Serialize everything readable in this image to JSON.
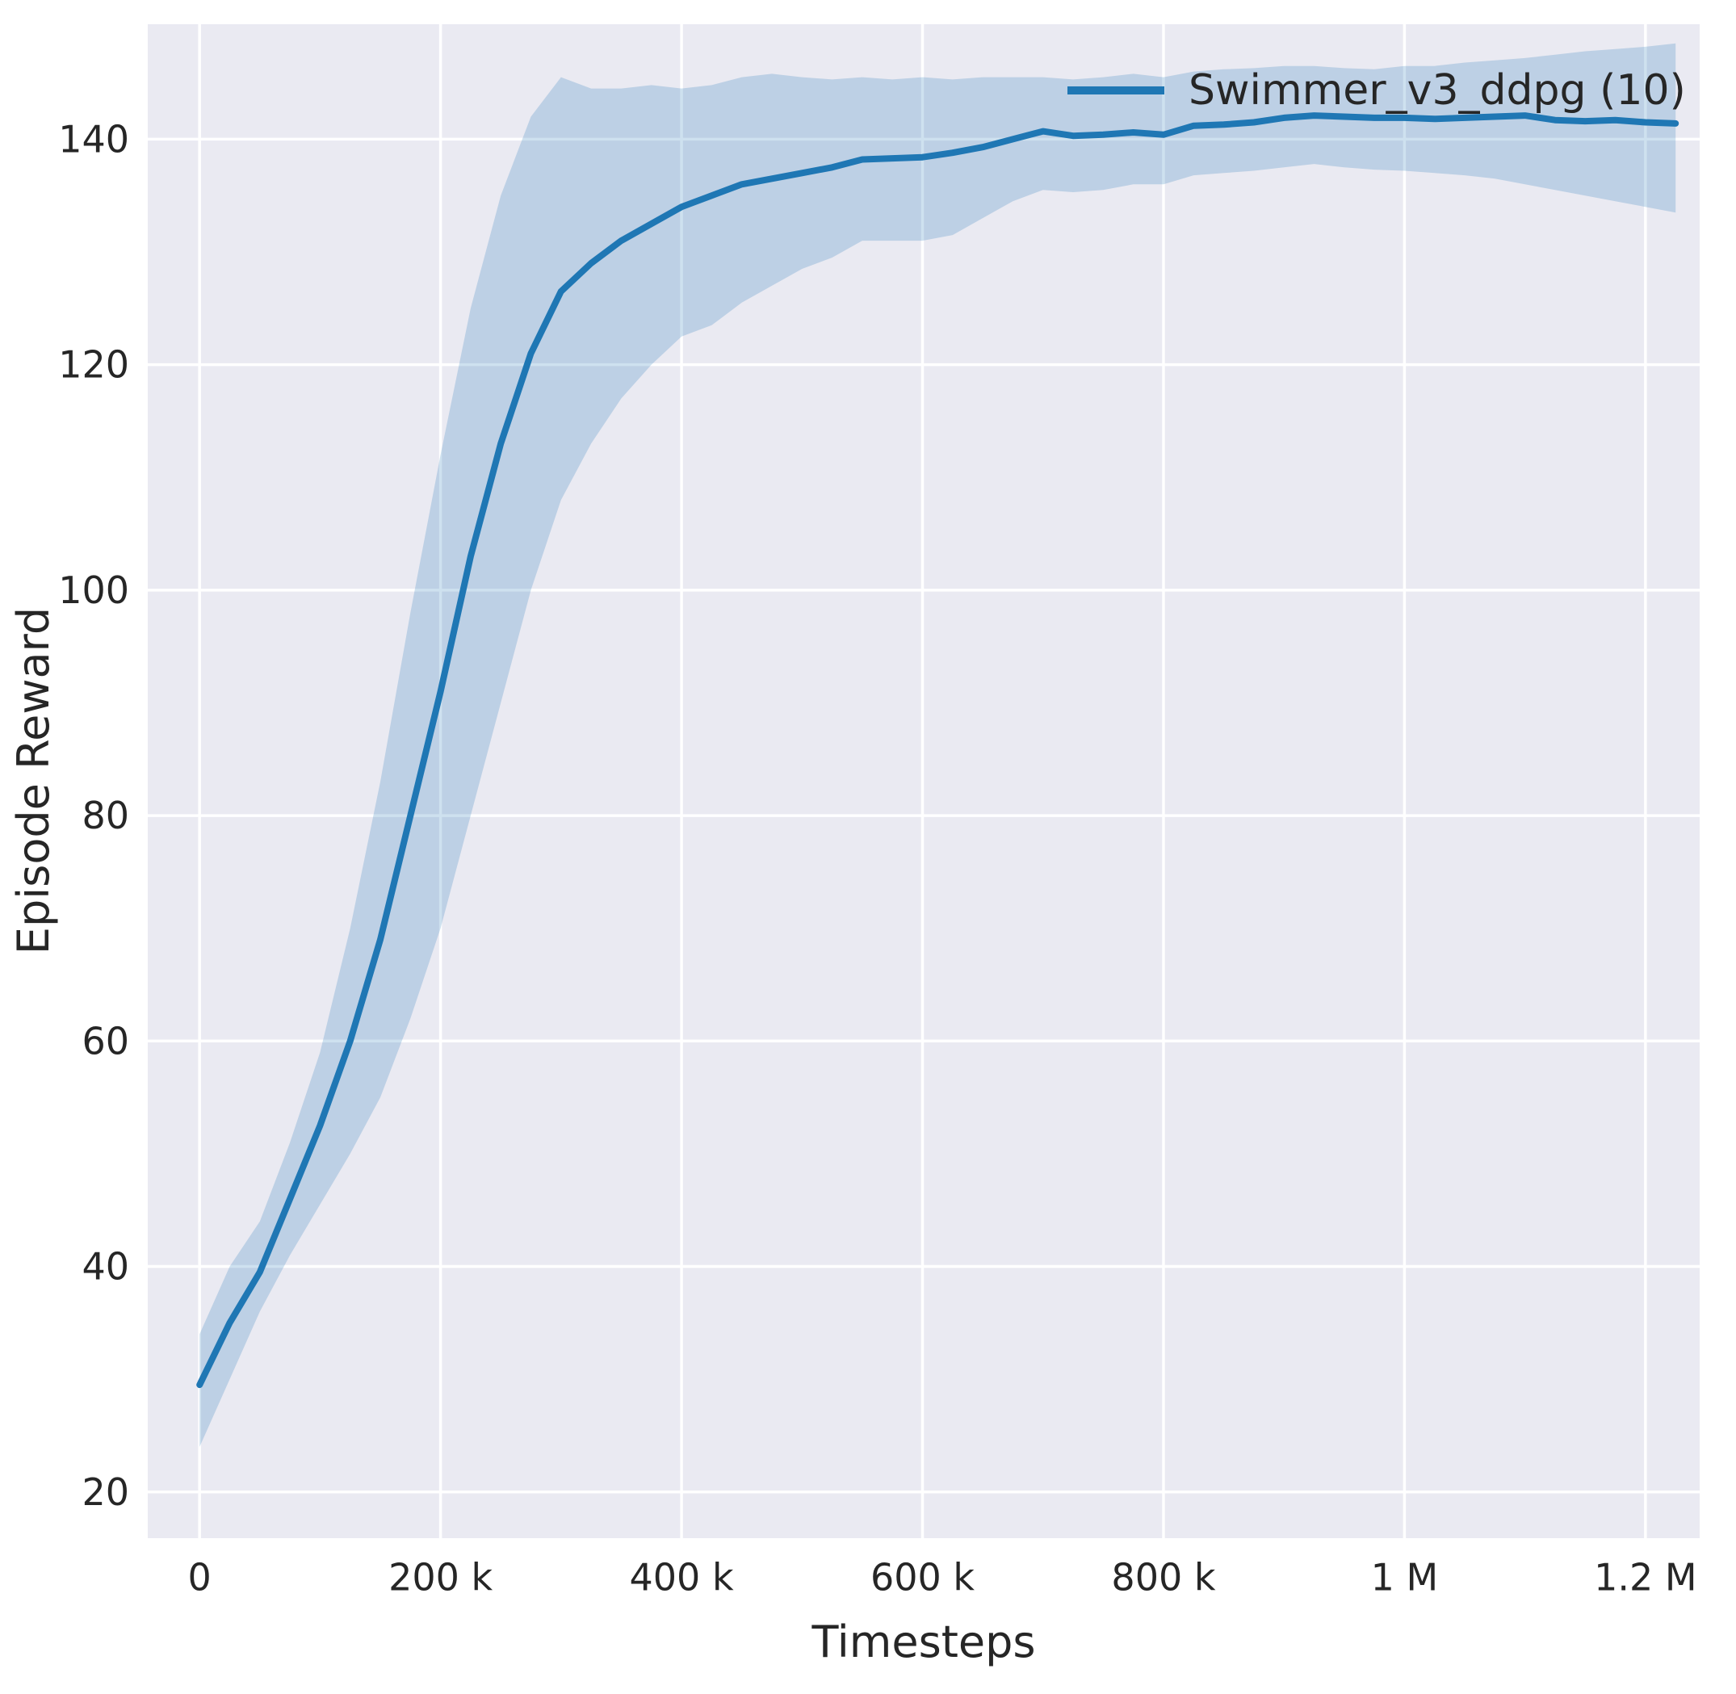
{
  "chart_data": {
    "type": "line",
    "title": "",
    "xlabel": "Timesteps",
    "ylabel": "Episode Reward",
    "legend_label": "Swimmer_v3_ddpg (10)",
    "legend_position": "upper right",
    "grid": true,
    "background": "#eaeaf2",
    "grid_color": "#ffffff",
    "line_color": "#1f77b4",
    "band_opacity": 0.22,
    "text_color": "#262626",
    "xlim": [
      -43000,
      1245000
    ],
    "ylim": [
      15.9,
      150.2
    ],
    "xticks": {
      "values": [
        0,
        200000,
        400000,
        600000,
        800000,
        1000000,
        1200000
      ],
      "labels": [
        "0",
        "200 k",
        "400 k",
        "600 k",
        "800 k",
        "1 M",
        "1.2 M"
      ]
    },
    "yticks": {
      "values": [
        20,
        40,
        60,
        80,
        100,
        120,
        140
      ],
      "labels": [
        "20",
        "40",
        "60",
        "80",
        "100",
        "120",
        "140"
      ]
    },
    "x": [
      0,
      25000,
      50000,
      75000,
      100000,
      125000,
      150000,
      175000,
      200000,
      225000,
      250000,
      275000,
      300000,
      325000,
      350000,
      375000,
      400000,
      425000,
      450000,
      475000,
      500000,
      525000,
      550000,
      575000,
      600000,
      625000,
      650000,
      675000,
      700000,
      725000,
      750000,
      775000,
      800000,
      825000,
      850000,
      875000,
      900000,
      925000,
      950000,
      975000,
      1000000,
      1025000,
      1050000,
      1075000,
      1100000,
      1125000,
      1150000,
      1175000,
      1200000,
      1225000
    ],
    "series": [
      {
        "name": "Swimmer_v3_ddpg (10)",
        "mean": [
          29.5,
          35,
          39.5,
          46,
          52.5,
          60,
          69,
          80,
          91,
          103,
          113,
          121,
          126.5,
          129,
          131,
          132.5,
          134,
          135,
          136,
          136.5,
          137,
          137.5,
          138.2,
          138.3,
          138.4,
          138.8,
          139.3,
          140,
          140.7,
          140.3,
          140.4,
          140.6,
          140.4,
          141.2,
          141.3,
          141.5,
          141.9,
          142.1,
          142,
          141.9,
          141.9,
          141.8,
          141.9,
          142,
          142.1,
          141.7,
          141.6,
          141.7,
          141.5,
          141.4
        ],
        "lower": [
          24,
          30,
          36,
          41,
          45.5,
          50,
          55,
          62,
          70,
          80,
          90,
          100,
          108,
          113,
          117,
          120,
          122.5,
          123.5,
          125.5,
          127,
          128.5,
          129.5,
          131,
          131,
          131,
          131.5,
          133,
          134.5,
          135.5,
          135.3,
          135.5,
          136,
          136,
          136.8,
          137,
          137.2,
          137.5,
          137.8,
          137.5,
          137.3,
          137.2,
          137,
          136.8,
          136.5,
          136,
          135.5,
          135,
          134.5,
          134,
          133.5
        ],
        "upper": [
          34,
          40,
          44,
          51,
          59,
          70,
          83,
          98,
          112,
          125,
          135,
          142,
          145.5,
          144.5,
          144.5,
          144.8,
          144.5,
          144.8,
          145.5,
          145.8,
          145.5,
          145.3,
          145.5,
          145.3,
          145.5,
          145.3,
          145.5,
          145.5,
          145.5,
          145.3,
          145.5,
          145.8,
          145.5,
          146,
          146.2,
          146.3,
          146.5,
          146.5,
          146.3,
          146.2,
          146.5,
          146.5,
          146.8,
          147,
          147.2,
          147.5,
          147.8,
          148,
          148.2,
          148.5
        ]
      }
    ]
  }
}
